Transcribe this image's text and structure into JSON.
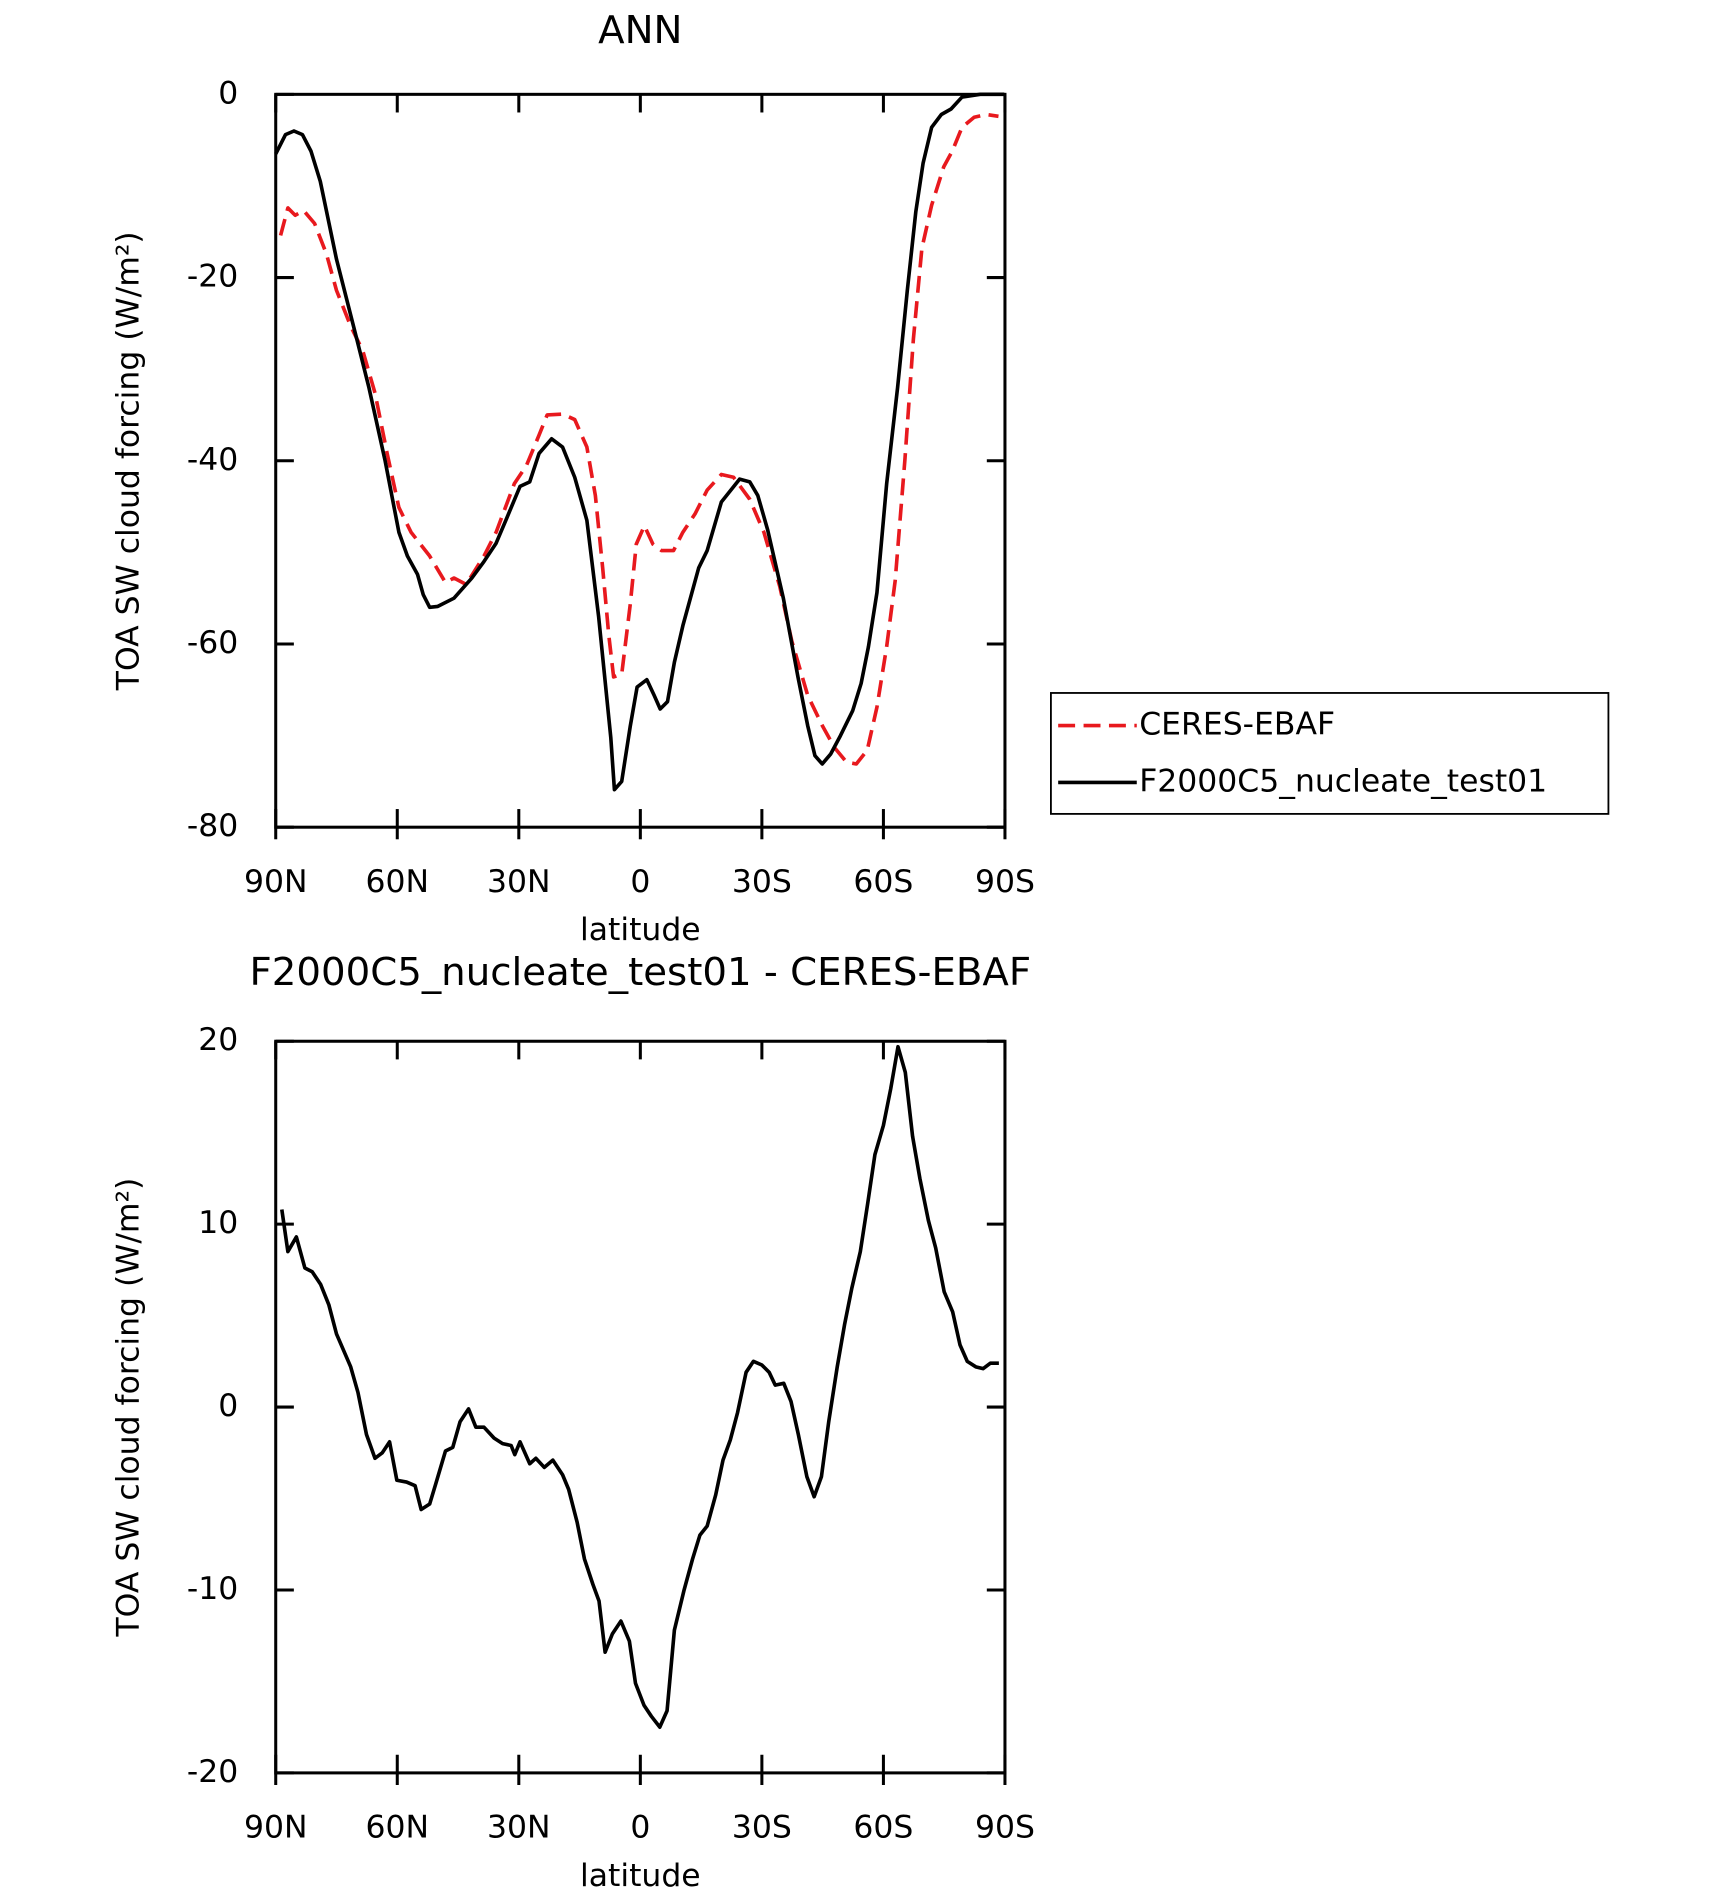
{
  "chart_data": [
    {
      "type": "line",
      "title": "ANN",
      "xlabel": "latitude",
      "ylabel": "TOA SW cloud forcing (W/m²)",
      "xlim": [
        90,
        -90
      ],
      "xticks": [
        {
          "value": 90,
          "label": "90N"
        },
        {
          "value": 60,
          "label": "60N"
        },
        {
          "value": 30,
          "label": "30N"
        },
        0,
        {
          "value": -30,
          "label": "30S"
        },
        {
          "value": -60,
          "label": "60S"
        },
        {
          "value": -90,
          "label": "90S"
        }
      ],
      "ylim": [
        -80,
        0
      ],
      "yticks": [
        -80,
        -60,
        -40,
        -20,
        0
      ],
      "legend": "right",
      "series": [
        {
          "name": "CERES-EBAF",
          "color": "#e8191e",
          "linestyle": "dashed",
          "x": [
            88.8,
            87,
            85.2,
            83.1,
            80.4,
            77.5,
            75,
            71.5,
            68.5,
            65.5,
            62.5,
            59.6,
            56.6,
            52,
            48.1,
            46,
            43,
            38.6,
            35.6,
            31.1,
            28.1,
            25,
            23,
            19.2,
            16.2,
            13.2,
            11.1,
            9.3,
            7.8,
            6.6,
            4.6,
            2.5,
            1,
            -1,
            -3.1,
            -5.2,
            -8.2,
            -10.5,
            -13.5,
            -16.5,
            -20,
            -23,
            -27,
            -30.5,
            -34.4,
            -37.4,
            -41.3,
            -44.9,
            -47.9,
            -50.9,
            -53.3,
            -56,
            -58.4,
            -60.8,
            -62.9,
            -65.3,
            -67.4,
            -69.5,
            -71.9,
            -74.9,
            -77,
            -79.4,
            -82.4,
            -85.4,
            -88.4
          ],
          "values": [
            -15.4,
            -12.4,
            -13.2,
            -12.7,
            -14.1,
            -17.4,
            -21.4,
            -25.3,
            -28,
            -32.6,
            -39.2,
            -45.1,
            -47.8,
            -50.4,
            -53.3,
            -52.8,
            -53.5,
            -50.4,
            -47.8,
            -42.5,
            -40.5,
            -37.2,
            -35,
            -34.9,
            -35.5,
            -38.5,
            -43.8,
            -51.7,
            -59,
            -63.6,
            -63.3,
            -55.7,
            -49.1,
            -47.1,
            -49.1,
            -49.8,
            -49.8,
            -47.8,
            -45.8,
            -43.2,
            -41.5,
            -41.8,
            -44.2,
            -47.8,
            -53.7,
            -59.7,
            -65.6,
            -68.9,
            -71.3,
            -72.9,
            -73.1,
            -71.6,
            -66.9,
            -60.3,
            -53.1,
            -39.9,
            -26.7,
            -16.8,
            -12.1,
            -7.9,
            -6.2,
            -3.6,
            -2.5,
            -2.2,
            -2.4
          ]
        },
        {
          "name": "F2000C5_nucleate_test01",
          "color": "#000000",
          "linestyle": "solid",
          "x": [
            90,
            87.6,
            85.5,
            83.4,
            81.3,
            79,
            75,
            70,
            67,
            63,
            59.6,
            57.5,
            55,
            53.6,
            52,
            50,
            46,
            41.6,
            38.6,
            35.6,
            33.2,
            29.7,
            27.3,
            25,
            21.9,
            19.2,
            16.2,
            13.2,
            10.3,
            8.8,
            7.3,
            6.4,
            4.6,
            2.5,
            0.8,
            -1.6,
            -3.4,
            -4.9,
            -6.7,
            -8.4,
            -10.5,
            -14.4,
            -16.5,
            -20,
            -24.5,
            -27,
            -29,
            -31.4,
            -35.3,
            -38.9,
            -41.3,
            -43.1,
            -44.9,
            -47,
            -49.4,
            -52.4,
            -54.5,
            -56.3,
            -58.4,
            -60.8,
            -63.5,
            -65.9,
            -68,
            -69.8,
            -71.9,
            -74.3,
            -76.7,
            -79.4,
            -83.9,
            -89.8
          ],
          "values": [
            -6.5,
            -4.4,
            -4,
            -4.4,
            -6.2,
            -9.5,
            -18,
            -26.7,
            -32,
            -40,
            -47.8,
            -50.4,
            -52.4,
            -54.6,
            -56,
            -55.9,
            -55,
            -52.8,
            -51,
            -49,
            -46.5,
            -42.8,
            -42.3,
            -39.2,
            -37.6,
            -38.5,
            -41.8,
            -46.5,
            -57,
            -63.6,
            -70.2,
            -75.9,
            -75,
            -69,
            -64.7,
            -63.9,
            -65.6,
            -67.1,
            -66.3,
            -62,
            -58,
            -51.7,
            -49.8,
            -44.5,
            -42,
            -42.3,
            -43.8,
            -47.5,
            -55,
            -63.6,
            -68.9,
            -72.2,
            -73.1,
            -72,
            -70,
            -67.3,
            -64.3,
            -60.3,
            -54.4,
            -42.5,
            -32,
            -21.4,
            -12.8,
            -7.5,
            -3.6,
            -2.2,
            -1.6,
            -0.3,
            0,
            0
          ]
        }
      ]
    },
    {
      "type": "line",
      "title": "F2000C5_nucleate_test01 - CERES-EBAF",
      "xlabel": "latitude",
      "ylabel": "TOA SW cloud forcing (W/m²)",
      "xlim": [
        90,
        -90
      ],
      "xticks": [
        {
          "value": 90,
          "label": "90N"
        },
        {
          "value": 60,
          "label": "60N"
        },
        {
          "value": 30,
          "label": "30N"
        },
        0,
        {
          "value": -30,
          "label": "30S"
        },
        {
          "value": -60,
          "label": "60S"
        },
        {
          "value": -90,
          "label": "90S"
        }
      ],
      "ylim": [
        -20,
        20
      ],
      "yticks": [
        -20,
        -10,
        0,
        10,
        20
      ],
      "color": "#000000",
      "x": [
        88.5,
        87,
        84.9,
        82.8,
        81,
        78.9,
        76.9,
        75,
        71.5,
        69.7,
        67.6,
        65.5,
        63.7,
        61.9,
        60.1,
        57.7,
        55.6,
        54.1,
        52,
        50.5,
        48.1,
        46.3,
        44.5,
        42.4,
        40.6,
        38.6,
        36.1,
        34,
        31.9,
        31,
        29.7,
        27.3,
        25.8,
        23.7,
        21.6,
        19.2,
        17.7,
        15.6,
        13.8,
        11.7,
        10.2,
        8.7,
        6.9,
        4.8,
        2.7,
        1.2,
        -0.9,
        -2.7,
        -4.8,
        -6.6,
        -8.4,
        -10.8,
        -12.9,
        -14.7,
        -16.5,
        -18.6,
        -20.4,
        -22.2,
        -24,
        -26.1,
        -27.9,
        -30,
        -31.8,
        -33.3,
        -35.4,
        -37.2,
        -39,
        -41.1,
        -42.9,
        -44.7,
        -46.5,
        -48.6,
        -50.4,
        -52.2,
        -54.3,
        -56.1,
        -57.9,
        -60,
        -61.8,
        -63.6,
        -65.4,
        -67.2,
        -69,
        -71.1,
        -72.9,
        -75,
        -77.1,
        -78.9,
        -80.7,
        -82.8,
        -84.6,
        -86.4,
        -88.5
      ],
      "values": [
        10.8,
        8.5,
        9.3,
        7.6,
        7.4,
        6.7,
        5.6,
        4,
        2.2,
        0.8,
        -1.5,
        -2.8,
        -2.5,
        -1.9,
        -4,
        -4.1,
        -4.3,
        -5.6,
        -5.3,
        -4.2,
        -2.4,
        -2.2,
        -0.8,
        -0.1,
        -1.1,
        -1.1,
        -1.7,
        -2,
        -2.1,
        -2.6,
        -1.9,
        -3.1,
        -2.8,
        -3.3,
        -2.9,
        -3.7,
        -4.5,
        -6.3,
        -8.3,
        -9.7,
        -10.6,
        -13.4,
        -12.4,
        -11.7,
        -12.8,
        -15.1,
        -16.3,
        -16.9,
        -17.5,
        -16.6,
        -12.2,
        -10,
        -8.3,
        -7,
        -6.5,
        -4.8,
        -2.9,
        -1.8,
        -0.3,
        1.9,
        2.5,
        2.3,
        1.9,
        1.2,
        1.3,
        0.3,
        -1.5,
        -3.8,
        -4.9,
        -3.8,
        -0.8,
        2.2,
        4.5,
        6.5,
        8.5,
        11.1,
        13.8,
        15.4,
        17.4,
        19.7,
        18.3,
        14.8,
        12.5,
        10.2,
        8.7,
        6.3,
        5.2,
        3.4,
        2.5,
        2.2,
        2.1,
        2.4,
        2.4
      ]
    }
  ]
}
